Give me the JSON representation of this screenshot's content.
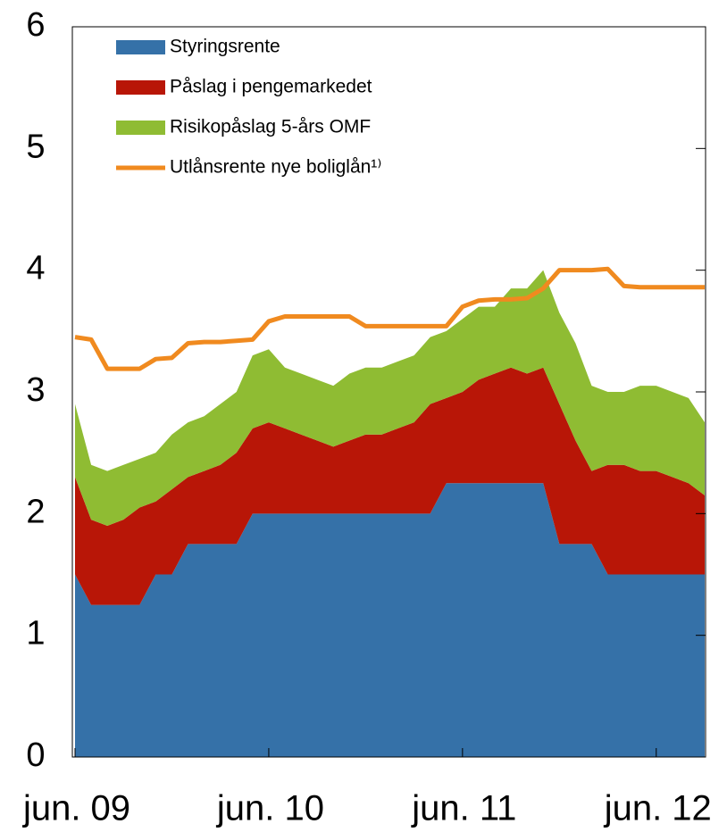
{
  "chart_data": {
    "type": "stacked_area_line",
    "x": [
      "2009-06",
      "2009-07",
      "2009-08",
      "2009-09",
      "2009-10",
      "2009-11",
      "2009-12",
      "2010-01",
      "2010-02",
      "2010-03",
      "2010-04",
      "2010-05",
      "2010-06",
      "2010-07",
      "2010-08",
      "2010-09",
      "2010-10",
      "2010-11",
      "2010-12",
      "2011-01",
      "2011-02",
      "2011-03",
      "2011-04",
      "2011-05",
      "2011-06",
      "2011-07",
      "2011-08",
      "2011-09",
      "2011-10",
      "2011-11",
      "2011-12",
      "2012-01",
      "2012-02",
      "2012-03",
      "2012-04",
      "2012-05",
      "2012-06",
      "2012-07",
      "2012-08",
      "2012-09"
    ],
    "series": [
      {
        "name": "Styringsrente",
        "color": "#3571a8",
        "kind": "area",
        "values": [
          1.5,
          1.25,
          1.25,
          1.25,
          1.25,
          1.5,
          1.5,
          1.75,
          1.75,
          1.75,
          1.75,
          2.0,
          2.0,
          2.0,
          2.0,
          2.0,
          2.0,
          2.0,
          2.0,
          2.0,
          2.0,
          2.0,
          2.0,
          2.25,
          2.25,
          2.25,
          2.25,
          2.25,
          2.25,
          2.25,
          1.75,
          1.75,
          1.75,
          1.5,
          1.5,
          1.5,
          1.5,
          1.5,
          1.5,
          1.5
        ]
      },
      {
        "name": "Påslag i pengemarkedet",
        "color": "#b81607",
        "kind": "area",
        "values": [
          0.8,
          0.7,
          0.65,
          0.7,
          0.8,
          0.6,
          0.7,
          0.55,
          0.6,
          0.65,
          0.75,
          0.7,
          0.75,
          0.7,
          0.65,
          0.6,
          0.55,
          0.6,
          0.65,
          0.65,
          0.7,
          0.75,
          0.9,
          0.7,
          0.75,
          0.85,
          0.9,
          0.95,
          0.9,
          0.95,
          1.15,
          0.85,
          0.6,
          0.9,
          0.9,
          0.85,
          0.85,
          0.8,
          0.75,
          0.65
        ]
      },
      {
        "name": "Risikopåslag 5-års OMF",
        "color": "#8fbc33",
        "kind": "area",
        "values": [
          0.6,
          0.45,
          0.45,
          0.45,
          0.4,
          0.4,
          0.45,
          0.45,
          0.45,
          0.5,
          0.5,
          0.6,
          0.6,
          0.5,
          0.5,
          0.5,
          0.5,
          0.55,
          0.55,
          0.55,
          0.55,
          0.55,
          0.55,
          0.55,
          0.6,
          0.6,
          0.55,
          0.65,
          0.7,
          0.8,
          0.75,
          0.8,
          0.7,
          0.6,
          0.6,
          0.7,
          0.7,
          0.7,
          0.7,
          0.6
        ]
      },
      {
        "name": "Utlånsrente nye boliglån¹⁾",
        "color": "#f08a1f",
        "kind": "line",
        "values": [
          3.45,
          3.43,
          3.19,
          3.19,
          3.19,
          3.27,
          3.28,
          3.4,
          3.41,
          3.41,
          3.42,
          3.43,
          3.58,
          3.62,
          3.62,
          3.62,
          3.62,
          3.62,
          3.54,
          3.54,
          3.54,
          3.54,
          3.54,
          3.54,
          3.7,
          3.75,
          3.76,
          3.76,
          3.77,
          3.85,
          4.0,
          4.0,
          4.0,
          4.01,
          3.87,
          3.86,
          3.86,
          3.86,
          3.86,
          3.86
        ]
      }
    ],
    "xlim": [
      "2009-06",
      "2012-09"
    ],
    "xticks": [
      {
        "value": "2009-06",
        "label": "jun. 09"
      },
      {
        "value": "2010-06",
        "label": "jun. 10"
      },
      {
        "value": "2011-06",
        "label": "jun. 11"
      },
      {
        "value": "2012-06",
        "label": "jun. 12"
      }
    ],
    "ylim": [
      0,
      6
    ],
    "yticks": [
      0,
      1,
      2,
      3,
      4,
      5,
      6
    ],
    "legend": "upper left"
  }
}
